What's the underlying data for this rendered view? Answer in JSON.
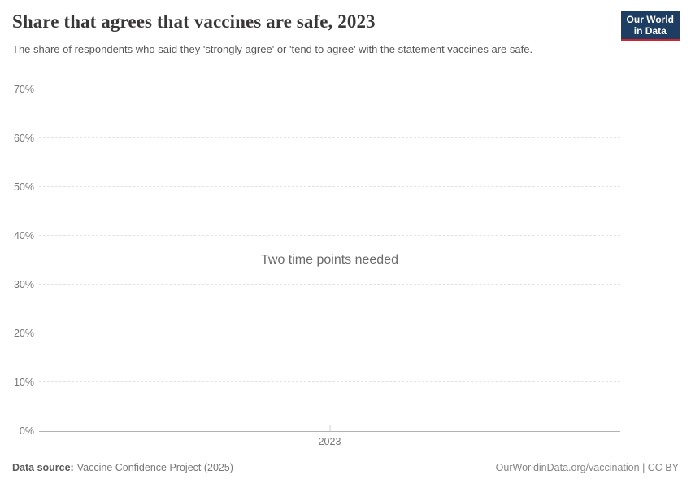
{
  "header": {
    "title": "Share that agrees that vaccines are safe, 2023",
    "subtitle": "The share of respondents who said they 'strongly agree' or 'tend to agree' with the statement vaccines are safe.",
    "logo": {
      "line1": "Our World",
      "line2": "in Data",
      "bg_color": "#1d3d63",
      "accent_color": "#d0232e"
    }
  },
  "chart_data": {
    "type": "line",
    "title": "Share that agrees that vaccines are safe, 2023",
    "xlabel": "",
    "ylabel": "",
    "x_ticks": [
      "2023"
    ],
    "y_ticks": [
      0,
      10,
      20,
      30,
      40,
      50,
      60,
      70
    ],
    "y_tick_suffix": "%",
    "ylim": [
      0,
      70
    ],
    "grid": true,
    "legend": "none",
    "series": [],
    "empty_message": "Two time points needed"
  },
  "footer": {
    "datasource_label": "Data source:",
    "datasource_value": "Vaccine Confidence Project (2025)",
    "link": "OurWorldinData.org/vaccination | CC BY"
  }
}
